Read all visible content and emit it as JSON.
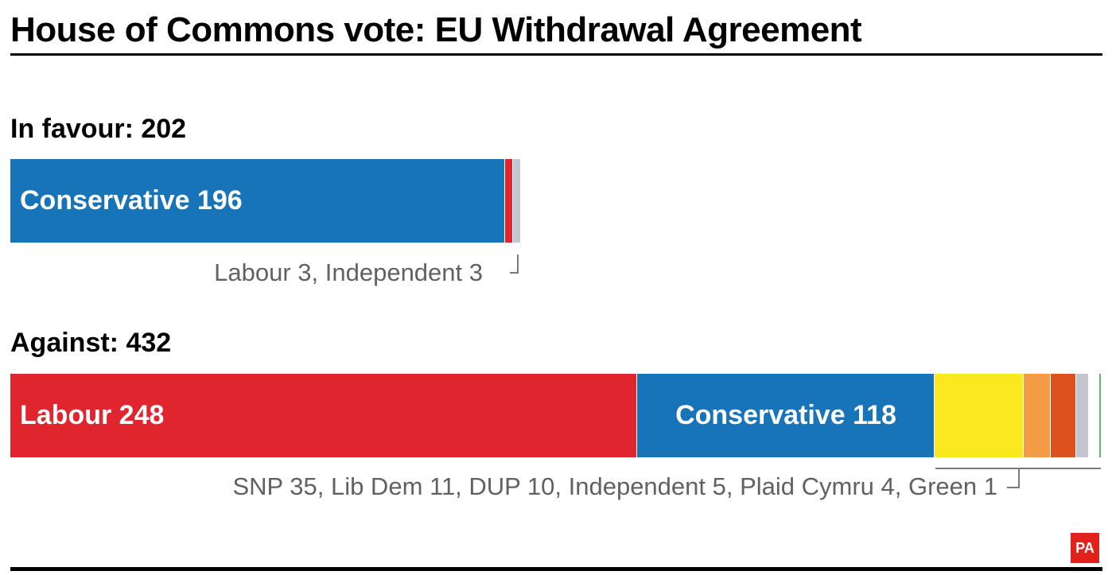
{
  "title": "House of Commons vote: EU Withdrawal Agreement",
  "logo_text": "PA",
  "chart_data": [
    {
      "type": "bar",
      "orientation": "horizontal-stacked",
      "heading_label": "In favour:",
      "total": 202,
      "note": "Labour 3, Independent 3",
      "series": [
        {
          "name": "Conservative",
          "value": 196,
          "color": "#1774b8",
          "label": "Conservative 196"
        },
        {
          "name": "Labour",
          "value": 3,
          "color": "#e1252f",
          "label": ""
        },
        {
          "name": "Independent",
          "value": 3,
          "color": "#c5c5d1",
          "label": ""
        }
      ]
    },
    {
      "type": "bar",
      "orientation": "horizontal-stacked",
      "heading_label": "Against:",
      "total": 432,
      "note": "SNP 35, Lib Dem 11, DUP 10, Independent 5, Plaid Cymru 4, Green 1",
      "series": [
        {
          "name": "Labour",
          "value": 248,
          "color": "#e1252f",
          "label": "Labour 248"
        },
        {
          "name": "Conservative",
          "value": 118,
          "color": "#1774b8",
          "label": "Conservative 118"
        },
        {
          "name": "SNP",
          "value": 35,
          "color": "#fbe81e",
          "label": ""
        },
        {
          "name": "Lib Dem",
          "value": 11,
          "color": "#f59a45",
          "label": ""
        },
        {
          "name": "DUP",
          "value": 10,
          "color": "#dd521c",
          "label": ""
        },
        {
          "name": "Independent",
          "value": 5,
          "color": "#c5c5d1",
          "label": ""
        },
        {
          "name": "Plaid Cymru",
          "value": 4,
          "color": "#ffffff",
          "label": ""
        },
        {
          "name": "Green",
          "value": 1,
          "color": "#5fb86a",
          "label": ""
        }
      ]
    }
  ]
}
